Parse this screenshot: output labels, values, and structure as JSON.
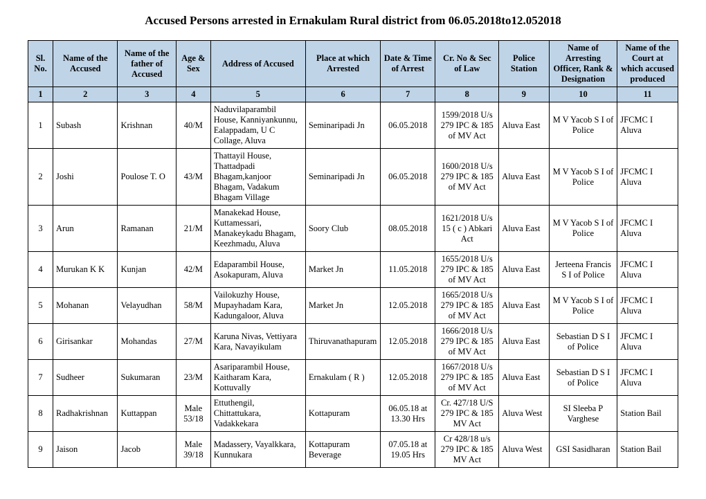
{
  "title": "Accused Persons arrested in  Ernakulam Rural  district from 06.05.2018to12.052018",
  "headers": {
    "h1": "Sl. No.",
    "h2": "Name of the Accused",
    "h3": "Name of the father of Accused",
    "h4": "Age & Sex",
    "h5": "Address of Accused",
    "h6": "Place at which Arrested",
    "h7": "Date & Time of Arrest",
    "h8": "Cr. No & Sec of Law",
    "h9": "Police Station",
    "h10": "Name of Arresting Officer, Rank & Designation",
    "h11": "Name of the Court at which accused produced"
  },
  "colnums": {
    "n1": "1",
    "n2": "2",
    "n3": "3",
    "n4": "4",
    "n5": "5",
    "n6": "6",
    "n7": "7",
    "n8": "8",
    "n9": "9",
    "n10": "10",
    "n11": "11"
  },
  "rows": [
    {
      "sl": "1",
      "name": "Subash",
      "father": "Krishnan",
      "age": "40/M",
      "addr": "Naduvilaparambil House, Kanniyankunnu, Ealappadam, U C Collage, Aluva",
      "place": "Seminaripadi Jn",
      "date": "06.05.2018",
      "crno": "1599/2018 U/s 279 IPC & 185 of MV Act",
      "station": "Aluva East",
      "officer": "M V Yacob S I of Police",
      "court": "JFCMC I Aluva"
    },
    {
      "sl": "2",
      "name": "Joshi",
      "father": "Poulose T. O",
      "age": "43/M",
      "addr": "Thattayil House, Thattadpadi Bhagam,kanjoor Bhagam, Vadakum Bhagam Village",
      "place": "Seminaripadi Jn",
      "date": "06.05.2018",
      "crno": "1600/2018 U/s 279 IPC & 185 of MV Act",
      "station": "Aluva East",
      "officer": "M V Yacob S I of Police",
      "court": "JFCMC I Aluva"
    },
    {
      "sl": "3",
      "name": "Arun",
      "father": "Ramanan",
      "age": "21/M",
      "addr": "Manakekad House, Kuttamessari, Manakeykadu Bhagam, Keezhmadu, Aluva",
      "place": "Soory Club",
      "date": "08.05.2018",
      "crno": "1621/2018 U/s 15 ( c ) Abkari Act",
      "station": "Aluva East",
      "officer": "M V Yacob S I of Police",
      "court": "JFCMC I Aluva"
    },
    {
      "sl": "4",
      "name": "Murukan K K",
      "father": "Kunjan",
      "age": "42/M",
      "addr": "Edaparambil House, Asokapuram, Aluva",
      "place": "Market Jn",
      "date": "11.05.2018",
      "crno": "1655/2018 U/s 279 IPC & 185 of MV Act",
      "station": "Aluva East",
      "officer": "Jerteena Francis S I of Police",
      "court": "JFCMC I Aluva"
    },
    {
      "sl": "5",
      "name": "Mohanan",
      "father": "Velayudhan",
      "age": "58/M",
      "addr": "Vailokuzhy House, Mupayhadam Kara, Kadungaloor, Aluva",
      "place": "Market Jn",
      "date": "12.05.2018",
      "crno": "1665/2018 U/s 279 IPC & 185 of MV Act",
      "station": "Aluva East",
      "officer": "M V Yacob S I of Police",
      "court": "JFCMC I Aluva"
    },
    {
      "sl": "6",
      "name": "Girisankar",
      "father": "Mohandas",
      "age": "27/M",
      "addr": "Karuna Nivas, Vettiyara Kara, Navayikulam",
      "place": "Thiruvanathapuram",
      "date": "12.05.2018",
      "crno": "1666/2018 U/s 279 IPC & 185 of MV Act",
      "station": "Aluva East",
      "officer": "Sebastian D S I of Police",
      "court": "JFCMC I Aluva"
    },
    {
      "sl": "7",
      "name": "Sudheer",
      "father": "Sukumaran",
      "age": "23/M",
      "addr": "Asariparambil House, Kaitharam Kara, Kottuvally",
      "place": "Ernakulam ( R )",
      "date": "12.05.2018",
      "crno": "1667/2018 U/s 279 IPC & 185 of MV Act",
      "station": "Aluva East",
      "officer": "Sebastian D S I of Police",
      "court": "JFCMC I Aluva"
    },
    {
      "sl": "8",
      "name": "Radhakrishnan",
      "father": "Kuttappan",
      "age": "Male 53/18",
      "addr": "Ettuthengil, Chittattukara, Vadakkekara",
      "place": "Kottapuram",
      "date": "06.05.18 at 13.30 Hrs",
      "crno": "Cr. 427/18 U/S 279 IPC & 185 MV Act",
      "station": "Aluva West",
      "officer": "SI Sleeba P Varghese",
      "court": "Station Bail"
    },
    {
      "sl": "9",
      "name": "Jaison",
      "father": "Jacob",
      "age": "Male 39/18",
      "addr": "Madassery, Vayalkkara, Kunnukara",
      "place": "Kottapuram Beverage",
      "date": "07.05.18 at 19.05 Hrs",
      "crno": "Cr 428/18 u/s 279 IPC & 185 MV Act",
      "station": "Aluva West",
      "officer": "GSI Sasidharan",
      "court": "Station Bail"
    }
  ]
}
